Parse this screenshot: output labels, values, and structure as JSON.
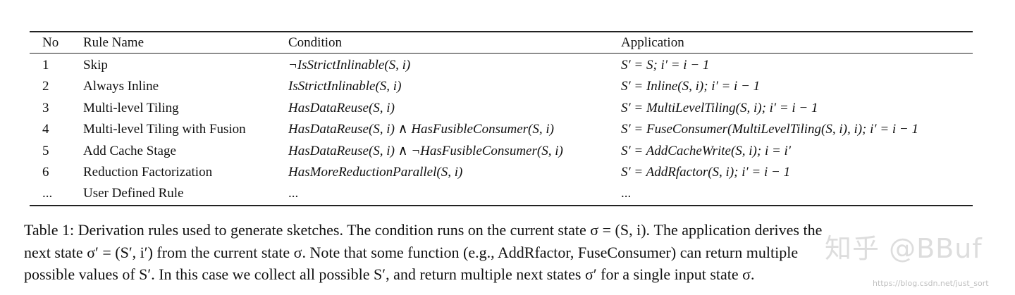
{
  "table": {
    "headers": {
      "no": "No",
      "rule_name": "Rule Name",
      "condition": "Condition",
      "application": "Application"
    },
    "rows": [
      {
        "no": "1",
        "rule_name": "Skip",
        "condition": "¬IsStrictInlinable(S, i)",
        "application": "S′ = S; i′ = i − 1"
      },
      {
        "no": "2",
        "rule_name": "Always Inline",
        "condition": "IsStrictInlinable(S, i)",
        "application": "S′ = Inline(S, i); i′ = i − 1"
      },
      {
        "no": "3",
        "rule_name": "Multi-level Tiling",
        "condition": "HasDataReuse(S, i)",
        "application": "S′ = MultiLevelTiling(S, i); i′ = i − 1"
      },
      {
        "no": "4",
        "rule_name": "Multi-level Tiling with Fusion",
        "condition": "HasDataReuse(S, i) ∧ HasFusibleConsumer(S, i)",
        "application": "S′ = FuseConsumer(MultiLevelTiling(S, i), i); i′ = i − 1"
      },
      {
        "no": "5",
        "rule_name": "Add Cache Stage",
        "condition": "HasDataReuse(S, i) ∧ ¬HasFusibleConsumer(S, i)",
        "application": "S′ = AddCacheWrite(S, i); i = i′"
      },
      {
        "no": "6",
        "rule_name": "Reduction Factorization",
        "condition": "HasMoreReductionParallel(S, i)",
        "application": "S′ = AddRfactor(S, i); i′ = i − 1"
      },
      {
        "no": "...",
        "rule_name": "User Defined Rule",
        "condition": "...",
        "application": "..."
      }
    ]
  },
  "caption": {
    "line1": "Table 1: Derivation rules used to generate sketches. The condition runs on the current state σ = (S, i). The application derives the",
    "line2": "next state σ′ = (S′, i′) from the current state σ. Note that some function (e.g., AddRfactor, FuseConsumer) can return multiple",
    "line3": "possible values of S′. In this case we collect all possible S′, and return multiple next states σ′ for a single input state σ."
  },
  "watermark": {
    "main": "知乎 @BBuf",
    "sub": "https://blog.csdn.net/just_sort"
  }
}
